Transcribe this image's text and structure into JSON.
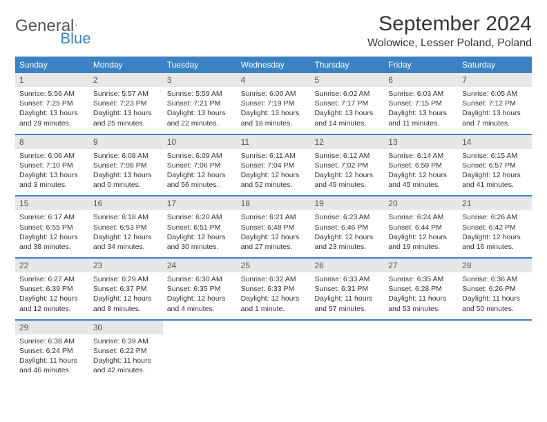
{
  "brand": {
    "part1": "General",
    "part2": "Blue"
  },
  "title": "September 2024",
  "location": "Wolowice, Lesser Poland, Poland",
  "style": {
    "header_bg": "#3b82c4",
    "header_fg": "#ffffff",
    "daynum_bg": "#e7e7e7",
    "row_border": "#3b82c4",
    "title_fontsize": 30,
    "location_fontsize": 16,
    "weekday_fontsize": 12,
    "cell_fontsize": 10.5
  },
  "weekdays": [
    "Sunday",
    "Monday",
    "Tuesday",
    "Wednesday",
    "Thursday",
    "Friday",
    "Saturday"
  ],
  "weeks": [
    [
      {
        "n": "1",
        "sunrise": "Sunrise: 5:56 AM",
        "sunset": "Sunset: 7:25 PM",
        "day": "Daylight: 13 hours and 29 minutes."
      },
      {
        "n": "2",
        "sunrise": "Sunrise: 5:57 AM",
        "sunset": "Sunset: 7:23 PM",
        "day": "Daylight: 13 hours and 25 minutes."
      },
      {
        "n": "3",
        "sunrise": "Sunrise: 5:59 AM",
        "sunset": "Sunset: 7:21 PM",
        "day": "Daylight: 13 hours and 22 minutes."
      },
      {
        "n": "4",
        "sunrise": "Sunrise: 6:00 AM",
        "sunset": "Sunset: 7:19 PM",
        "day": "Daylight: 13 hours and 18 minutes."
      },
      {
        "n": "5",
        "sunrise": "Sunrise: 6:02 AM",
        "sunset": "Sunset: 7:17 PM",
        "day": "Daylight: 13 hours and 14 minutes."
      },
      {
        "n": "6",
        "sunrise": "Sunrise: 6:03 AM",
        "sunset": "Sunset: 7:15 PM",
        "day": "Daylight: 13 hours and 11 minutes."
      },
      {
        "n": "7",
        "sunrise": "Sunrise: 6:05 AM",
        "sunset": "Sunset: 7:12 PM",
        "day": "Daylight: 13 hours and 7 minutes."
      }
    ],
    [
      {
        "n": "8",
        "sunrise": "Sunrise: 6:06 AM",
        "sunset": "Sunset: 7:10 PM",
        "day": "Daylight: 13 hours and 3 minutes."
      },
      {
        "n": "9",
        "sunrise": "Sunrise: 6:08 AM",
        "sunset": "Sunset: 7:08 PM",
        "day": "Daylight: 13 hours and 0 minutes."
      },
      {
        "n": "10",
        "sunrise": "Sunrise: 6:09 AM",
        "sunset": "Sunset: 7:06 PM",
        "day": "Daylight: 12 hours and 56 minutes."
      },
      {
        "n": "11",
        "sunrise": "Sunrise: 6:11 AM",
        "sunset": "Sunset: 7:04 PM",
        "day": "Daylight: 12 hours and 52 minutes."
      },
      {
        "n": "12",
        "sunrise": "Sunrise: 6:12 AM",
        "sunset": "Sunset: 7:02 PM",
        "day": "Daylight: 12 hours and 49 minutes."
      },
      {
        "n": "13",
        "sunrise": "Sunrise: 6:14 AM",
        "sunset": "Sunset: 6:59 PM",
        "day": "Daylight: 12 hours and 45 minutes."
      },
      {
        "n": "14",
        "sunrise": "Sunrise: 6:15 AM",
        "sunset": "Sunset: 6:57 PM",
        "day": "Daylight: 12 hours and 41 minutes."
      }
    ],
    [
      {
        "n": "15",
        "sunrise": "Sunrise: 6:17 AM",
        "sunset": "Sunset: 6:55 PM",
        "day": "Daylight: 12 hours and 38 minutes."
      },
      {
        "n": "16",
        "sunrise": "Sunrise: 6:18 AM",
        "sunset": "Sunset: 6:53 PM",
        "day": "Daylight: 12 hours and 34 minutes."
      },
      {
        "n": "17",
        "sunrise": "Sunrise: 6:20 AM",
        "sunset": "Sunset: 6:51 PM",
        "day": "Daylight: 12 hours and 30 minutes."
      },
      {
        "n": "18",
        "sunrise": "Sunrise: 6:21 AM",
        "sunset": "Sunset: 6:48 PM",
        "day": "Daylight: 12 hours and 27 minutes."
      },
      {
        "n": "19",
        "sunrise": "Sunrise: 6:23 AM",
        "sunset": "Sunset: 6:46 PM",
        "day": "Daylight: 12 hours and 23 minutes."
      },
      {
        "n": "20",
        "sunrise": "Sunrise: 6:24 AM",
        "sunset": "Sunset: 6:44 PM",
        "day": "Daylight: 12 hours and 19 minutes."
      },
      {
        "n": "21",
        "sunrise": "Sunrise: 6:26 AM",
        "sunset": "Sunset: 6:42 PM",
        "day": "Daylight: 12 hours and 16 minutes."
      }
    ],
    [
      {
        "n": "22",
        "sunrise": "Sunrise: 6:27 AM",
        "sunset": "Sunset: 6:39 PM",
        "day": "Daylight: 12 hours and 12 minutes."
      },
      {
        "n": "23",
        "sunrise": "Sunrise: 6:29 AM",
        "sunset": "Sunset: 6:37 PM",
        "day": "Daylight: 12 hours and 8 minutes."
      },
      {
        "n": "24",
        "sunrise": "Sunrise: 6:30 AM",
        "sunset": "Sunset: 6:35 PM",
        "day": "Daylight: 12 hours and 4 minutes."
      },
      {
        "n": "25",
        "sunrise": "Sunrise: 6:32 AM",
        "sunset": "Sunset: 6:33 PM",
        "day": "Daylight: 12 hours and 1 minute."
      },
      {
        "n": "26",
        "sunrise": "Sunrise: 6:33 AM",
        "sunset": "Sunset: 6:31 PM",
        "day": "Daylight: 11 hours and 57 minutes."
      },
      {
        "n": "27",
        "sunrise": "Sunrise: 6:35 AM",
        "sunset": "Sunset: 6:28 PM",
        "day": "Daylight: 11 hours and 53 minutes."
      },
      {
        "n": "28",
        "sunrise": "Sunrise: 6:36 AM",
        "sunset": "Sunset: 6:26 PM",
        "day": "Daylight: 11 hours and 50 minutes."
      }
    ],
    [
      {
        "n": "29",
        "sunrise": "Sunrise: 6:38 AM",
        "sunset": "Sunset: 6:24 PM",
        "day": "Daylight: 11 hours and 46 minutes."
      },
      {
        "n": "30",
        "sunrise": "Sunrise: 6:39 AM",
        "sunset": "Sunset: 6:22 PM",
        "day": "Daylight: 11 hours and 42 minutes."
      },
      null,
      null,
      null,
      null,
      null
    ]
  ]
}
